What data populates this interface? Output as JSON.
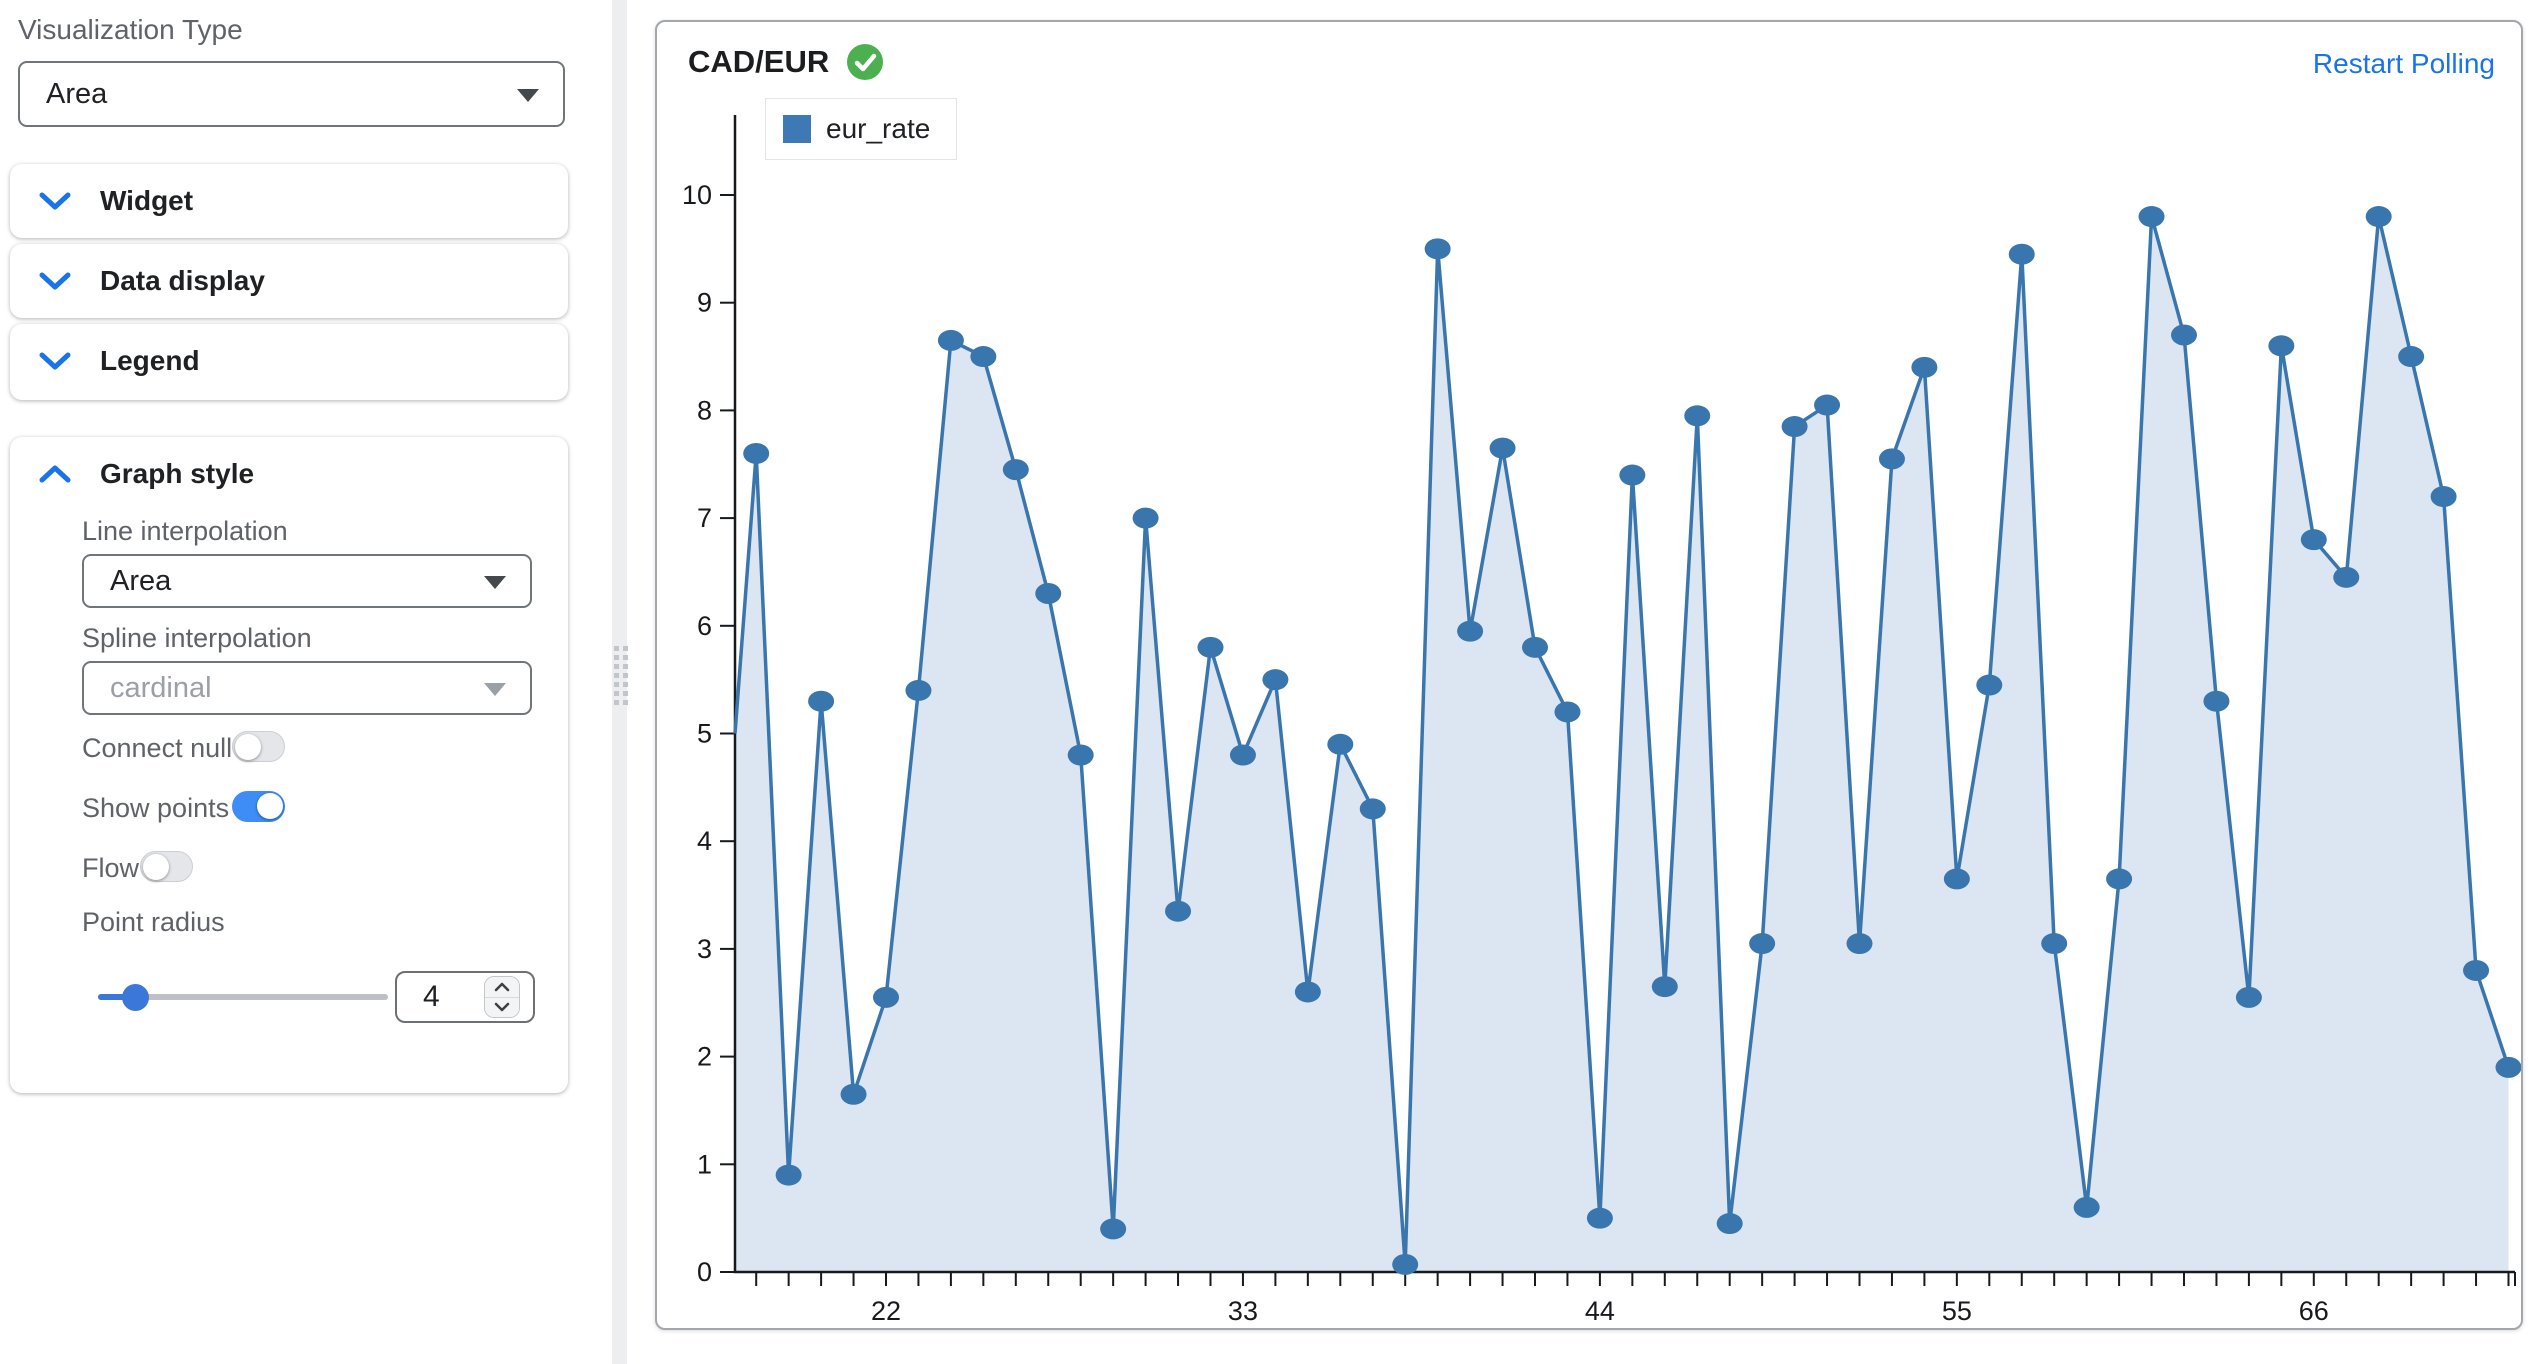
{
  "sidebar": {
    "visualization_type_label": "Visualization Type",
    "visualization_type_value": "Area",
    "sections": [
      {
        "label": "Widget"
      },
      {
        "label": "Data display"
      },
      {
        "label": "Legend"
      }
    ],
    "graph_style": {
      "label": "Graph style",
      "line_interpolation_label": "Line interpolation",
      "line_interpolation_value": "Area",
      "spline_interpolation_label": "Spline interpolation",
      "spline_interpolation_placeholder": "cardinal",
      "connect_null_label": "Connect null",
      "connect_null_on": false,
      "show_points_label": "Show points",
      "show_points_on": true,
      "flow_label": "Flow",
      "flow_on": false,
      "point_radius_label": "Point radius",
      "point_radius_value": "4"
    }
  },
  "chart_panel": {
    "title": "CAD/EUR",
    "status_icon": "check-circle",
    "restart_polling_label": "Restart Polling",
    "legend_label": "eur_rate"
  },
  "colors": {
    "accent_blue": "#1a73e8",
    "toggle_on_blue": "#3e8df6",
    "slider_blue": "#3b76d9",
    "line": "#3a76ae",
    "area_fill": "#dbe6f2",
    "legend_square": "#3d7ab5",
    "success_green": "#4caf50",
    "link_blue": "#1a73e8",
    "axis": "#17191c"
  },
  "chart_data": {
    "type": "area",
    "title": "CAD/EUR",
    "series_name": "eur_rate",
    "x": [
      18,
      19,
      20,
      21,
      22,
      23,
      24,
      25,
      26,
      27,
      28,
      29,
      30,
      31,
      32,
      33,
      34,
      35,
      36,
      37,
      38,
      39,
      40,
      41,
      42,
      43,
      44,
      45,
      46,
      47,
      48,
      49,
      50,
      51,
      52,
      53,
      54,
      55,
      56,
      57,
      58,
      59,
      60,
      61,
      62,
      63,
      64,
      65,
      66,
      67,
      68,
      69,
      70,
      71,
      72
    ],
    "values": [
      7.6,
      0.9,
      5.3,
      1.65,
      2.55,
      5.4,
      8.65,
      8.5,
      7.45,
      6.3,
      4.8,
      0.4,
      7.0,
      3.35,
      5.8,
      4.8,
      5.5,
      2.6,
      4.9,
      4.3,
      0.07,
      9.5,
      5.95,
      7.65,
      5.8,
      5.2,
      0.5,
      7.4,
      2.65,
      7.95,
      0.45,
      3.05,
      7.85,
      8.05,
      3.05,
      7.55,
      8.4,
      3.65,
      5.45,
      9.45,
      3.05,
      0.6,
      3.65,
      9.8,
      8.7,
      5.3,
      2.55,
      8.6,
      6.8,
      6.45,
      9.8,
      8.5,
      7.2,
      2.8,
      1.9
    ],
    "left_edge_value": 5.0,
    "xticks_labeled": [
      22,
      33,
      44,
      55,
      66
    ],
    "yticks": [
      0,
      1,
      2,
      3,
      4,
      5,
      6,
      7,
      8,
      9,
      10
    ],
    "xlim": [
      17.4,
      73
    ],
    "ylim": [
      0,
      10.5
    ],
    "grid": false,
    "legend_position": "top-left",
    "show_points": true,
    "xlabel": "",
    "ylabel": ""
  }
}
